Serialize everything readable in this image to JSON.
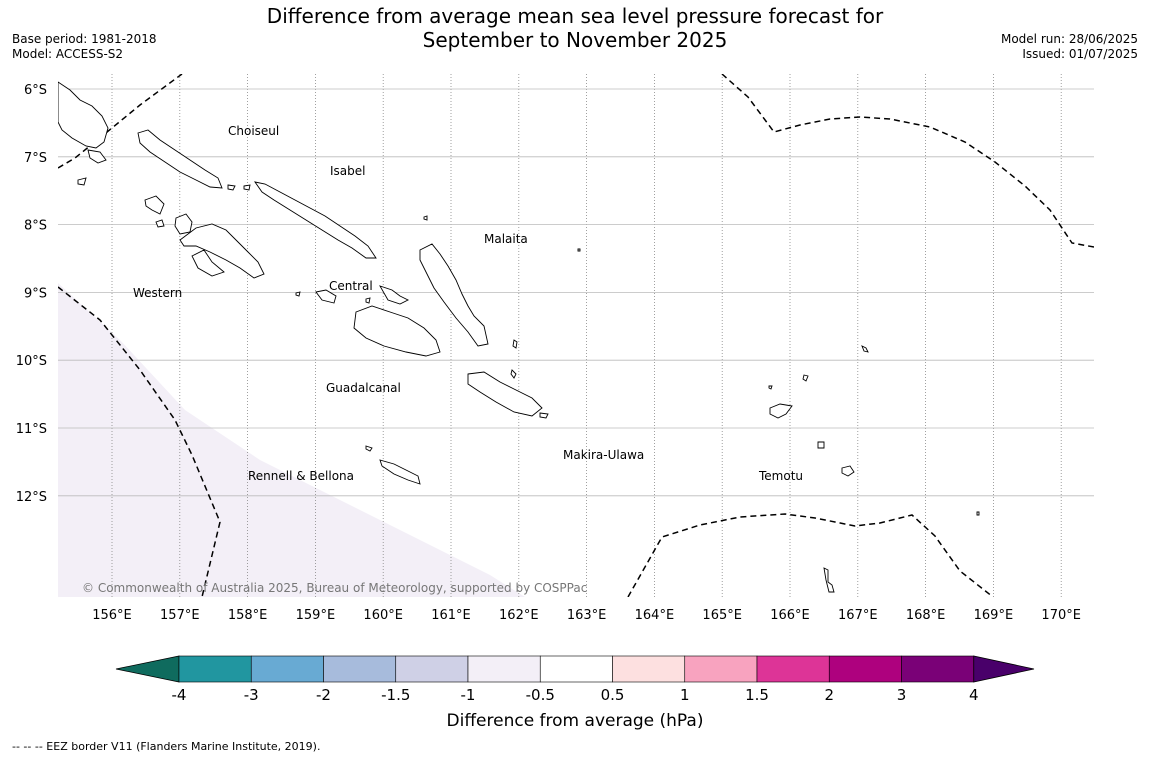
{
  "title": {
    "line1": "Difference from average mean sea level pressure forecast for",
    "line2": "September to November 2025"
  },
  "meta_left": {
    "base_period": "Base period: 1981-2018",
    "model": "Model: ACCESS-S2"
  },
  "meta_right": {
    "model_run": "Model run: 28/06/2025",
    "issued": "Issued: 01/07/2025"
  },
  "map": {
    "lon_labels": [
      "156°E",
      "157°E",
      "158°E",
      "159°E",
      "160°E",
      "161°E",
      "162°E",
      "163°E",
      "164°E",
      "165°E",
      "166°E",
      "167°E",
      "168°E",
      "169°E",
      "170°E"
    ],
    "lat_labels": [
      "6°S",
      "7°S",
      "8°S",
      "9°S",
      "10°S",
      "11°S",
      "12°S"
    ],
    "provinces": [
      "Choiseul",
      "Isabel",
      "Malaita",
      "Western",
      "Central",
      "Guadalcanal",
      "Makira-Ulawa",
      "Rennell & Bellona",
      "Temotu"
    ],
    "copyright": "© Commonwealth of Australia 2025, Bureau of Meteorology, supported by COSPPac",
    "shaded_anomaly_range_hpa": [
      -1,
      -0.5
    ]
  },
  "colorbar": {
    "title": "Difference from average (hPa)",
    "tick_labels": [
      "-4",
      "-3",
      "-2",
      "-1.5",
      "-1",
      "-0.5",
      "0.5",
      "1",
      "1.5",
      "2",
      "3",
      "4"
    ],
    "colors": [
      "#0f6b5e",
      "#2196a0",
      "#68aad3",
      "#a7bbdc",
      "#cfd0e6",
      "#f3eff7",
      "#ffffff",
      "#fde0e0",
      "#f8a3bf",
      "#dd3497",
      "#ae017e",
      "#7a0177",
      "#49006a"
    ]
  },
  "footnote": "-- -- -- EEZ border V11 (Flanders Marine Institute, 2019)."
}
